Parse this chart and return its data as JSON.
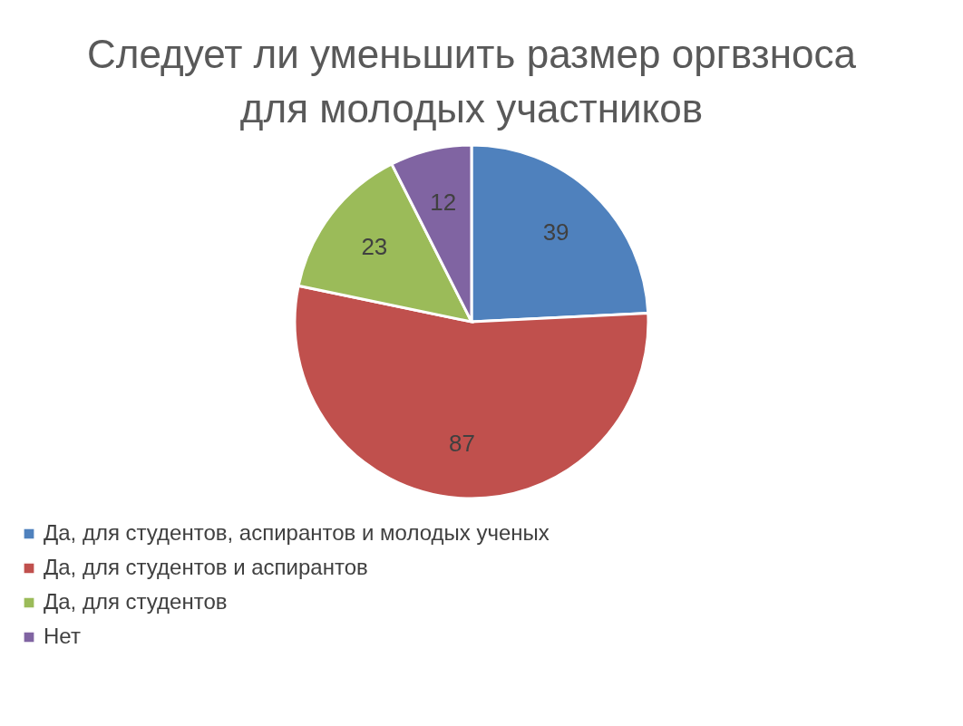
{
  "chart_data": {
    "type": "pie",
    "title": "Следует ли уменьшить размер оргвзноса для молодых участников",
    "categories": [
      "Да, для студентов, аспирантов и молодых ученых",
      "Да, для студентов и аспирантов",
      "Да, для студентов",
      "Нет"
    ],
    "values": [
      39,
      87,
      23,
      12
    ],
    "colors": [
      "#4f81bd",
      "#c0504d",
      "#9bbb59",
      "#8064a2"
    ],
    "data_labels": true,
    "legend": "bottom"
  }
}
